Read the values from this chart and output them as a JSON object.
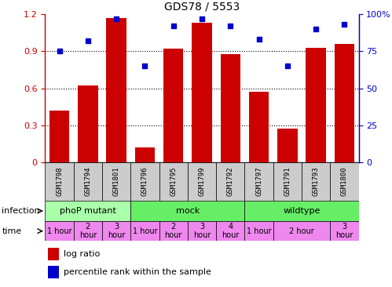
{
  "title": "GDS78 / 5553",
  "samples": [
    "GSM1798",
    "GSM1794",
    "GSM1801",
    "GSM1796",
    "GSM1795",
    "GSM1799",
    "GSM1792",
    "GSM1797",
    "GSM1791",
    "GSM1793",
    "GSM1800"
  ],
  "log_ratio": [
    0.42,
    0.62,
    1.17,
    0.12,
    0.92,
    1.13,
    0.88,
    0.57,
    0.27,
    0.93,
    0.96
  ],
  "percentile": [
    75,
    82,
    97,
    65,
    92,
    97,
    92,
    83,
    65,
    90,
    93
  ],
  "bar_color": "#cc0000",
  "dot_color": "#0000cc",
  "ylim_left": [
    0,
    1.2
  ],
  "ylim_right": [
    0,
    100
  ],
  "yticks_left": [
    0,
    0.3,
    0.6,
    0.9,
    1.2
  ],
  "ytick_labels_left": [
    "0",
    "0.3",
    "0.6",
    "0.9",
    "1.2"
  ],
  "yticks_right": [
    0,
    25,
    50,
    75,
    100
  ],
  "ytick_labels_right": [
    "0",
    "25",
    "50",
    "75",
    "100%"
  ],
  "bar_width": 0.7,
  "phoP_color": "#aaffaa",
  "mock_color": "#66ee66",
  "wildtype_color": "#66ee66",
  "time_color": "#ee88ee",
  "xticklabel_bg": "#cccccc",
  "infection_groups": [
    {
      "label": "phoP mutant",
      "cols": [
        0,
        1,
        2
      ],
      "color": "#aaffaa"
    },
    {
      "label": "mock",
      "cols": [
        3,
        4,
        5,
        6
      ],
      "color": "#66ee66"
    },
    {
      "label": "wildtype",
      "cols": [
        7,
        8,
        9,
        10
      ],
      "color": "#66ee66"
    }
  ],
  "time_merged": [
    {
      "cols": [
        0
      ],
      "label": "1 hour"
    },
    {
      "cols": [
        1
      ],
      "label": "2\nhour"
    },
    {
      "cols": [
        2
      ],
      "label": "3\nhour"
    },
    {
      "cols": [
        3
      ],
      "label": "1 hour"
    },
    {
      "cols": [
        4
      ],
      "label": "2\nhour"
    },
    {
      "cols": [
        5
      ],
      "label": "3\nhour"
    },
    {
      "cols": [
        6
      ],
      "label": "4\nhour"
    },
    {
      "cols": [
        7
      ],
      "label": "1 hour"
    },
    {
      "cols": [
        8,
        9
      ],
      "label": "2 hour"
    },
    {
      "cols": [
        10
      ],
      "label": "3\nhour"
    }
  ]
}
